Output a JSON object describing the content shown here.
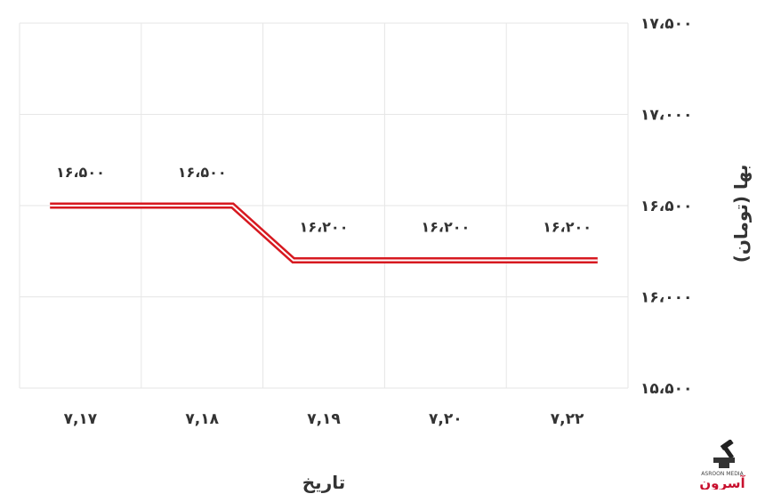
{
  "chart_data": {
    "type": "line",
    "categories": [
      "۷,۱۷",
      "۷,۱۸",
      "۷,۱۹",
      "۷,۲۰",
      "۷,۲۲"
    ],
    "series": [
      {
        "values": [
          16500,
          16500,
          16200,
          16200,
          16200
        ],
        "value_labels": [
          "۱۶،۵۰۰",
          "۱۶،۵۰۰",
          "۱۶،۲۰۰",
          "۱۶،۲۰۰",
          "۱۶،۲۰۰"
        ],
        "color": "#d71920"
      }
    ],
    "xlabel": "تاریخ",
    "ylabel": "بها (تومان)",
    "ylim": [
      15500,
      17500
    ],
    "yticks": [
      15500,
      16000,
      16500,
      17000,
      17500
    ],
    "ytick_labels": [
      "۱۵،۵۰۰",
      "۱۶،۰۰۰",
      "۱۶،۵۰۰",
      "۱۷،۰۰۰",
      "۱۷،۵۰۰"
    ],
    "grid": true,
    "y_axis_side": "right",
    "line_style": "double"
  },
  "logo": {
    "text": "آسرون",
    "subtext": "ASROON MEDIA",
    "color": "#c8102e",
    "icon": "hammer-logo-icon"
  }
}
